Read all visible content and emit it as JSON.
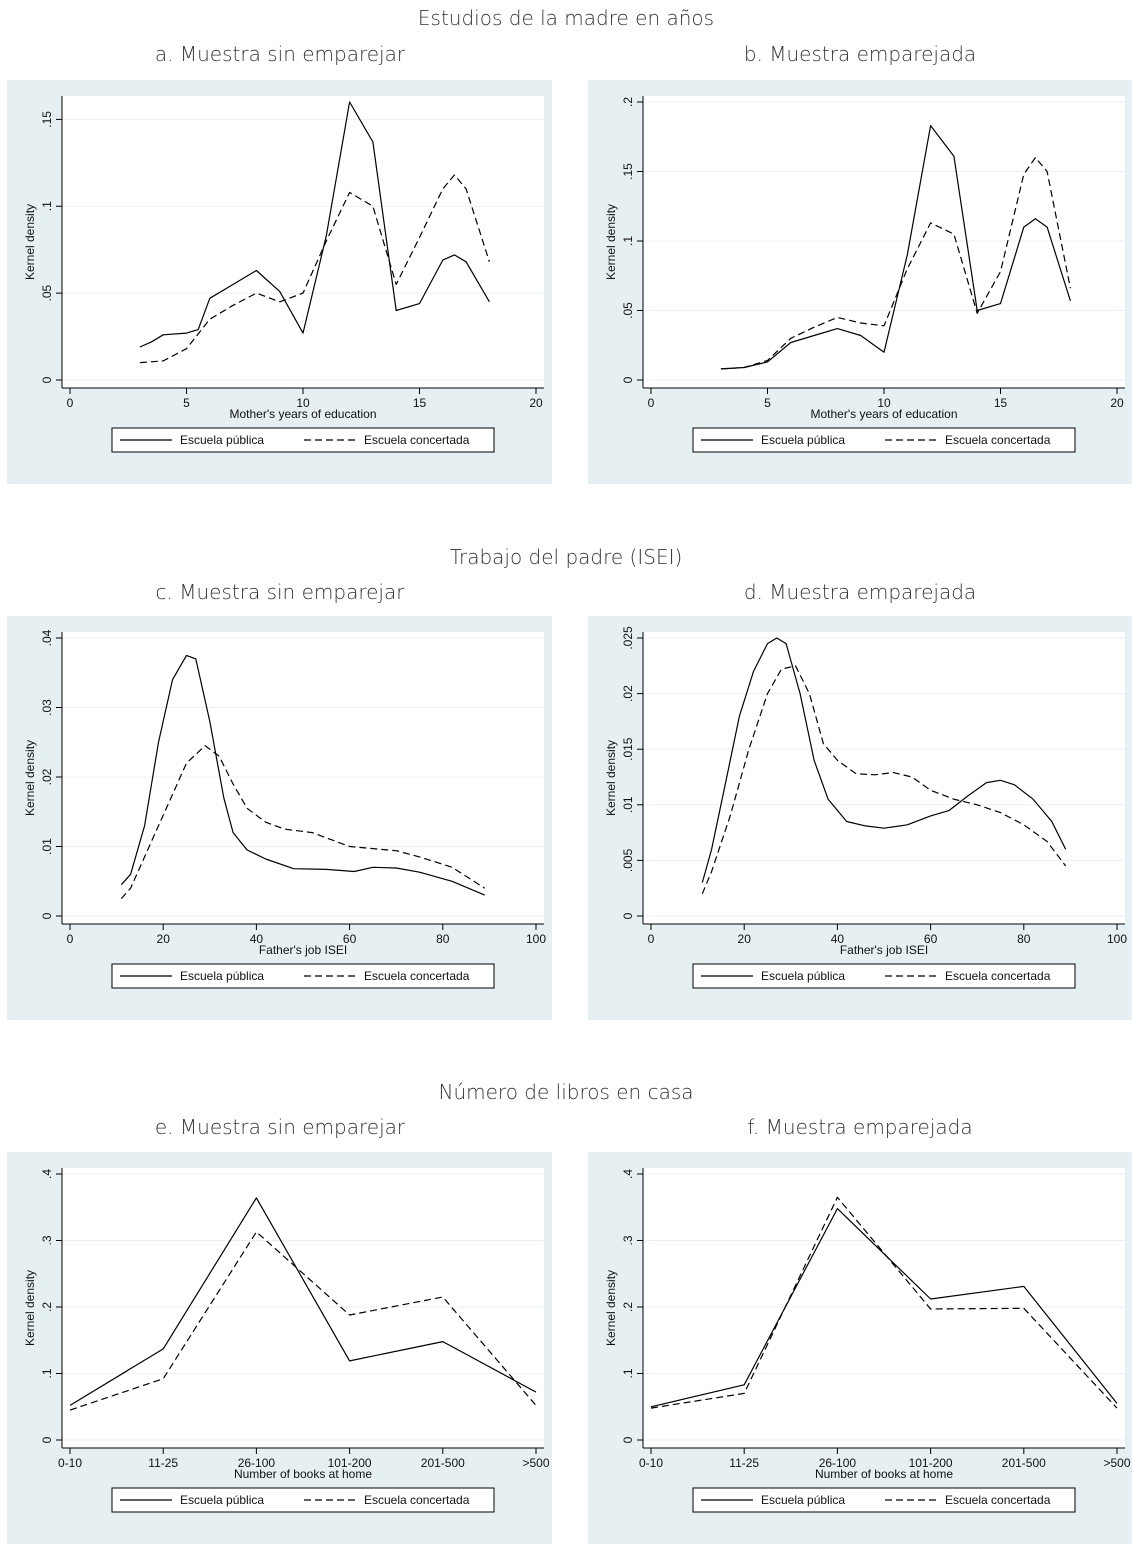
{
  "groups": [
    {
      "title": "Estudios de la madre en años"
    },
    {
      "title": "Trabajo del padre (ISEI)"
    },
    {
      "title": "Número de libros en casa"
    }
  ],
  "chart_data": [
    {
      "type": "line",
      "title": "a. Muestra sin emparejar",
      "xlabel": "Mother's years of  education",
      "ylabel": "Kernel density",
      "xlim": [
        0,
        20
      ],
      "ylim": [
        0,
        0.16
      ],
      "xticks": [
        "0",
        "5",
        "10",
        "15",
        "20"
      ],
      "xtick_values": [
        0,
        5,
        10,
        15,
        20
      ],
      "yticks": [
        "0",
        ".05",
        ".1",
        ".15"
      ],
      "ytick_values": [
        0,
        0.05,
        0.1,
        0.15
      ],
      "grid": true,
      "legend": "bottom",
      "series": [
        {
          "name": "Escuela pública",
          "style": "solid",
          "points": [
            [
              3,
              0.019
            ],
            [
              3.5,
              0.022
            ],
            [
              4,
              0.026
            ],
            [
              5,
              0.027
            ],
            [
              5.5,
              0.029
            ],
            [
              6,
              0.047
            ],
            [
              7,
              0.055
            ],
            [
              8,
              0.063
            ],
            [
              9,
              0.051
            ],
            [
              10,
              0.027
            ],
            [
              11,
              0.083
            ],
            [
              12,
              0.16
            ],
            [
              13,
              0.137
            ],
            [
              14,
              0.04
            ],
            [
              15,
              0.044
            ],
            [
              16,
              0.069
            ],
            [
              16.5,
              0.072
            ],
            [
              17,
              0.068
            ],
            [
              18,
              0.045
            ]
          ]
        },
        {
          "name": "Escuela concertada",
          "style": "dashed",
          "points": [
            [
              3,
              0.01
            ],
            [
              4,
              0.011
            ],
            [
              5,
              0.018
            ],
            [
              6,
              0.035
            ],
            [
              7,
              0.043
            ],
            [
              8,
              0.05
            ],
            [
              9,
              0.045
            ],
            [
              10,
              0.05
            ],
            [
              11,
              0.08
            ],
            [
              12,
              0.108
            ],
            [
              13,
              0.1
            ],
            [
              14,
              0.055
            ],
            [
              15,
              0.082
            ],
            [
              16,
              0.11
            ],
            [
              16.5,
              0.118
            ],
            [
              17,
              0.11
            ],
            [
              18,
              0.068
            ]
          ]
        }
      ]
    },
    {
      "type": "line",
      "title": "b. Muestra emparejada",
      "xlabel": "Mother's years of  education",
      "ylabel": "Kernel density",
      "xlim": [
        0,
        20
      ],
      "ylim": [
        0,
        0.2
      ],
      "xticks": [
        "0",
        "5",
        "10",
        "15",
        "20"
      ],
      "xtick_values": [
        0,
        5,
        10,
        15,
        20
      ],
      "yticks": [
        "0",
        ".05",
        ".1",
        ".15",
        ".2"
      ],
      "ytick_values": [
        0,
        0.05,
        0.1,
        0.15,
        0.2
      ],
      "grid": true,
      "legend": "bottom",
      "series": [
        {
          "name": "Escuela pública",
          "style": "solid",
          "points": [
            [
              3,
              0.008
            ],
            [
              4,
              0.009
            ],
            [
              5,
              0.013
            ],
            [
              6,
              0.027
            ],
            [
              7,
              0.032
            ],
            [
              8,
              0.037
            ],
            [
              9,
              0.032
            ],
            [
              10,
              0.02
            ],
            [
              11,
              0.09
            ],
            [
              12,
              0.183
            ],
            [
              13,
              0.161
            ],
            [
              14,
              0.05
            ],
            [
              15,
              0.055
            ],
            [
              16,
              0.11
            ],
            [
              16.5,
              0.116
            ],
            [
              17,
              0.11
            ],
            [
              18,
              0.057
            ]
          ]
        },
        {
          "name": "Escuela concertada",
          "style": "dashed",
          "points": [
            [
              3,
              0.008
            ],
            [
              4,
              0.009
            ],
            [
              5,
              0.014
            ],
            [
              6,
              0.03
            ],
            [
              7,
              0.038
            ],
            [
              8,
              0.045
            ],
            [
              9,
              0.041
            ],
            [
              10,
              0.039
            ],
            [
              11,
              0.08
            ],
            [
              12,
              0.113
            ],
            [
              13,
              0.105
            ],
            [
              14,
              0.048
            ],
            [
              15,
              0.078
            ],
            [
              16,
              0.148
            ],
            [
              16.5,
              0.16
            ],
            [
              17,
              0.15
            ],
            [
              18,
              0.066
            ]
          ]
        }
      ]
    },
    {
      "type": "line",
      "title": "c. Muestra sin emparejar",
      "xlabel": "Father's job ISEI",
      "ylabel": "Kernel density",
      "xlim": [
        0,
        100
      ],
      "ylim": [
        0,
        0.04
      ],
      "xticks": [
        "0",
        "20",
        "40",
        "60",
        "80",
        "100"
      ],
      "xtick_values": [
        0,
        20,
        40,
        60,
        80,
        100
      ],
      "yticks": [
        "0",
        ".01",
        ".02",
        ".03",
        ".04"
      ],
      "ytick_values": [
        0,
        0.01,
        0.02,
        0.03,
        0.04
      ],
      "grid": true,
      "legend": "bottom",
      "series": [
        {
          "name": "Escuela pública",
          "style": "solid",
          "points": [
            [
              11,
              0.0045
            ],
            [
              13,
              0.006
            ],
            [
              16,
              0.013
            ],
            [
              19,
              0.025
            ],
            [
              22,
              0.034
            ],
            [
              25,
              0.0375
            ],
            [
              27,
              0.037
            ],
            [
              30,
              0.028
            ],
            [
              33,
              0.017
            ],
            [
              35,
              0.012
            ],
            [
              38,
              0.0095
            ],
            [
              42,
              0.0082
            ],
            [
              48,
              0.0068
            ],
            [
              55,
              0.0067
            ],
            [
              61,
              0.0064
            ],
            [
              65,
              0.007
            ],
            [
              70,
              0.0069
            ],
            [
              75,
              0.0063
            ],
            [
              82,
              0.005
            ],
            [
              89,
              0.003
            ]
          ]
        },
        {
          "name": "Escuela concertada",
          "style": "dashed",
          "points": [
            [
              11,
              0.0025
            ],
            [
              13,
              0.004
            ],
            [
              17,
              0.01
            ],
            [
              21,
              0.016
            ],
            [
              25,
              0.022
            ],
            [
              29,
              0.0245
            ],
            [
              32,
              0.023
            ],
            [
              35,
              0.019
            ],
            [
              38,
              0.0155
            ],
            [
              42,
              0.0135
            ],
            [
              46,
              0.0125
            ],
            [
              52,
              0.012
            ],
            [
              56,
              0.011
            ],
            [
              60,
              0.01
            ],
            [
              65,
              0.0097
            ],
            [
              70,
              0.0094
            ],
            [
              75,
              0.0085
            ],
            [
              82,
              0.007
            ],
            [
              89,
              0.004
            ]
          ]
        }
      ]
    },
    {
      "type": "line",
      "title": "d. Muestra emparejada",
      "xlabel": "Father's job ISEI",
      "ylabel": "Kernel density",
      "xlim": [
        0,
        100
      ],
      "ylim": [
        0,
        0.025
      ],
      "xticks": [
        "0",
        "20",
        "40",
        "60",
        "80",
        "100"
      ],
      "xtick_values": [
        0,
        20,
        40,
        60,
        80,
        100
      ],
      "yticks": [
        "0",
        ".005",
        ".01",
        ".015",
        ".02",
        ".025"
      ],
      "ytick_values": [
        0,
        0.005,
        0.01,
        0.015,
        0.02,
        0.025
      ],
      "grid": true,
      "legend": "bottom",
      "series": [
        {
          "name": "Escuela pública",
          "style": "solid",
          "points": [
            [
              11,
              0.003
            ],
            [
              13,
              0.006
            ],
            [
              16,
              0.012
            ],
            [
              19,
              0.018
            ],
            [
              22,
              0.022
            ],
            [
              25,
              0.0245
            ],
            [
              27,
              0.025
            ],
            [
              29,
              0.0245
            ],
            [
              32,
              0.02
            ],
            [
              35,
              0.014
            ],
            [
              38,
              0.0105
            ],
            [
              42,
              0.0085
            ],
            [
              46,
              0.0081
            ],
            [
              50,
              0.0079
            ],
            [
              55,
              0.0082
            ],
            [
              60,
              0.009
            ],
            [
              64,
              0.0095
            ],
            [
              68,
              0.0108
            ],
            [
              72,
              0.012
            ],
            [
              75,
              0.0122
            ],
            [
              78,
              0.0118
            ],
            [
              82,
              0.0105
            ],
            [
              86,
              0.0085
            ],
            [
              89,
              0.006
            ]
          ]
        },
        {
          "name": "Escuela concertada",
          "style": "dashed",
          "points": [
            [
              11,
              0.002
            ],
            [
              13,
              0.004
            ],
            [
              17,
              0.009
            ],
            [
              21,
              0.015
            ],
            [
              25,
              0.02
            ],
            [
              28,
              0.0222
            ],
            [
              31,
              0.0225
            ],
            [
              34,
              0.02
            ],
            [
              37,
              0.0155
            ],
            [
              40,
              0.014
            ],
            [
              44,
              0.0128
            ],
            [
              48,
              0.0127
            ],
            [
              52,
              0.0129
            ],
            [
              56,
              0.0125
            ],
            [
              60,
              0.0113
            ],
            [
              65,
              0.0105
            ],
            [
              70,
              0.01
            ],
            [
              75,
              0.0093
            ],
            [
              80,
              0.0082
            ],
            [
              85,
              0.0067
            ],
            [
              89,
              0.0045
            ]
          ]
        }
      ]
    },
    {
      "type": "line",
      "title": "e. Muestra sin emparejar",
      "xlabel": "Number of books at home",
      "ylabel": "Kernel density",
      "categories": [
        "0-10",
        "11-25",
        "26-100",
        "101-200",
        "201-500",
        ">500"
      ],
      "ylim": [
        0,
        0.4
      ],
      "yticks": [
        "0",
        ".1",
        ".2",
        ".3",
        ".4"
      ],
      "ytick_values": [
        0,
        0.1,
        0.2,
        0.3,
        0.4
      ],
      "grid": true,
      "legend": "bottom",
      "series": [
        {
          "name": "Escuela pública",
          "style": "solid",
          "values": [
            0.052,
            0.137,
            0.364,
            0.119,
            0.148,
            0.072
          ]
        },
        {
          "name": "Escuela concertada",
          "style": "dashed",
          "values": [
            0.045,
            0.092,
            0.313,
            0.188,
            0.215,
            0.052
          ]
        }
      ]
    },
    {
      "type": "line",
      "title": "f. Muestra emparejada",
      "xlabel": "Number of books at home",
      "ylabel": "Kernel density",
      "categories": [
        "0-10",
        "11-25",
        "26-100",
        "101-200",
        "201-500",
        ">500"
      ],
      "ylim": [
        0,
        0.4
      ],
      "yticks": [
        "0",
        ".1",
        ".2",
        ".3",
        ".4"
      ],
      "ytick_values": [
        0,
        0.1,
        0.2,
        0.3,
        0.4
      ],
      "grid": true,
      "legend": "bottom",
      "series": [
        {
          "name": "Escuela pública",
          "style": "solid",
          "values": [
            0.05,
            0.083,
            0.348,
            0.212,
            0.231,
            0.055
          ]
        },
        {
          "name": "Escuela concertada",
          "style": "dashed",
          "values": [
            0.048,
            0.07,
            0.365,
            0.197,
            0.198,
            0.048
          ]
        }
      ]
    }
  ]
}
